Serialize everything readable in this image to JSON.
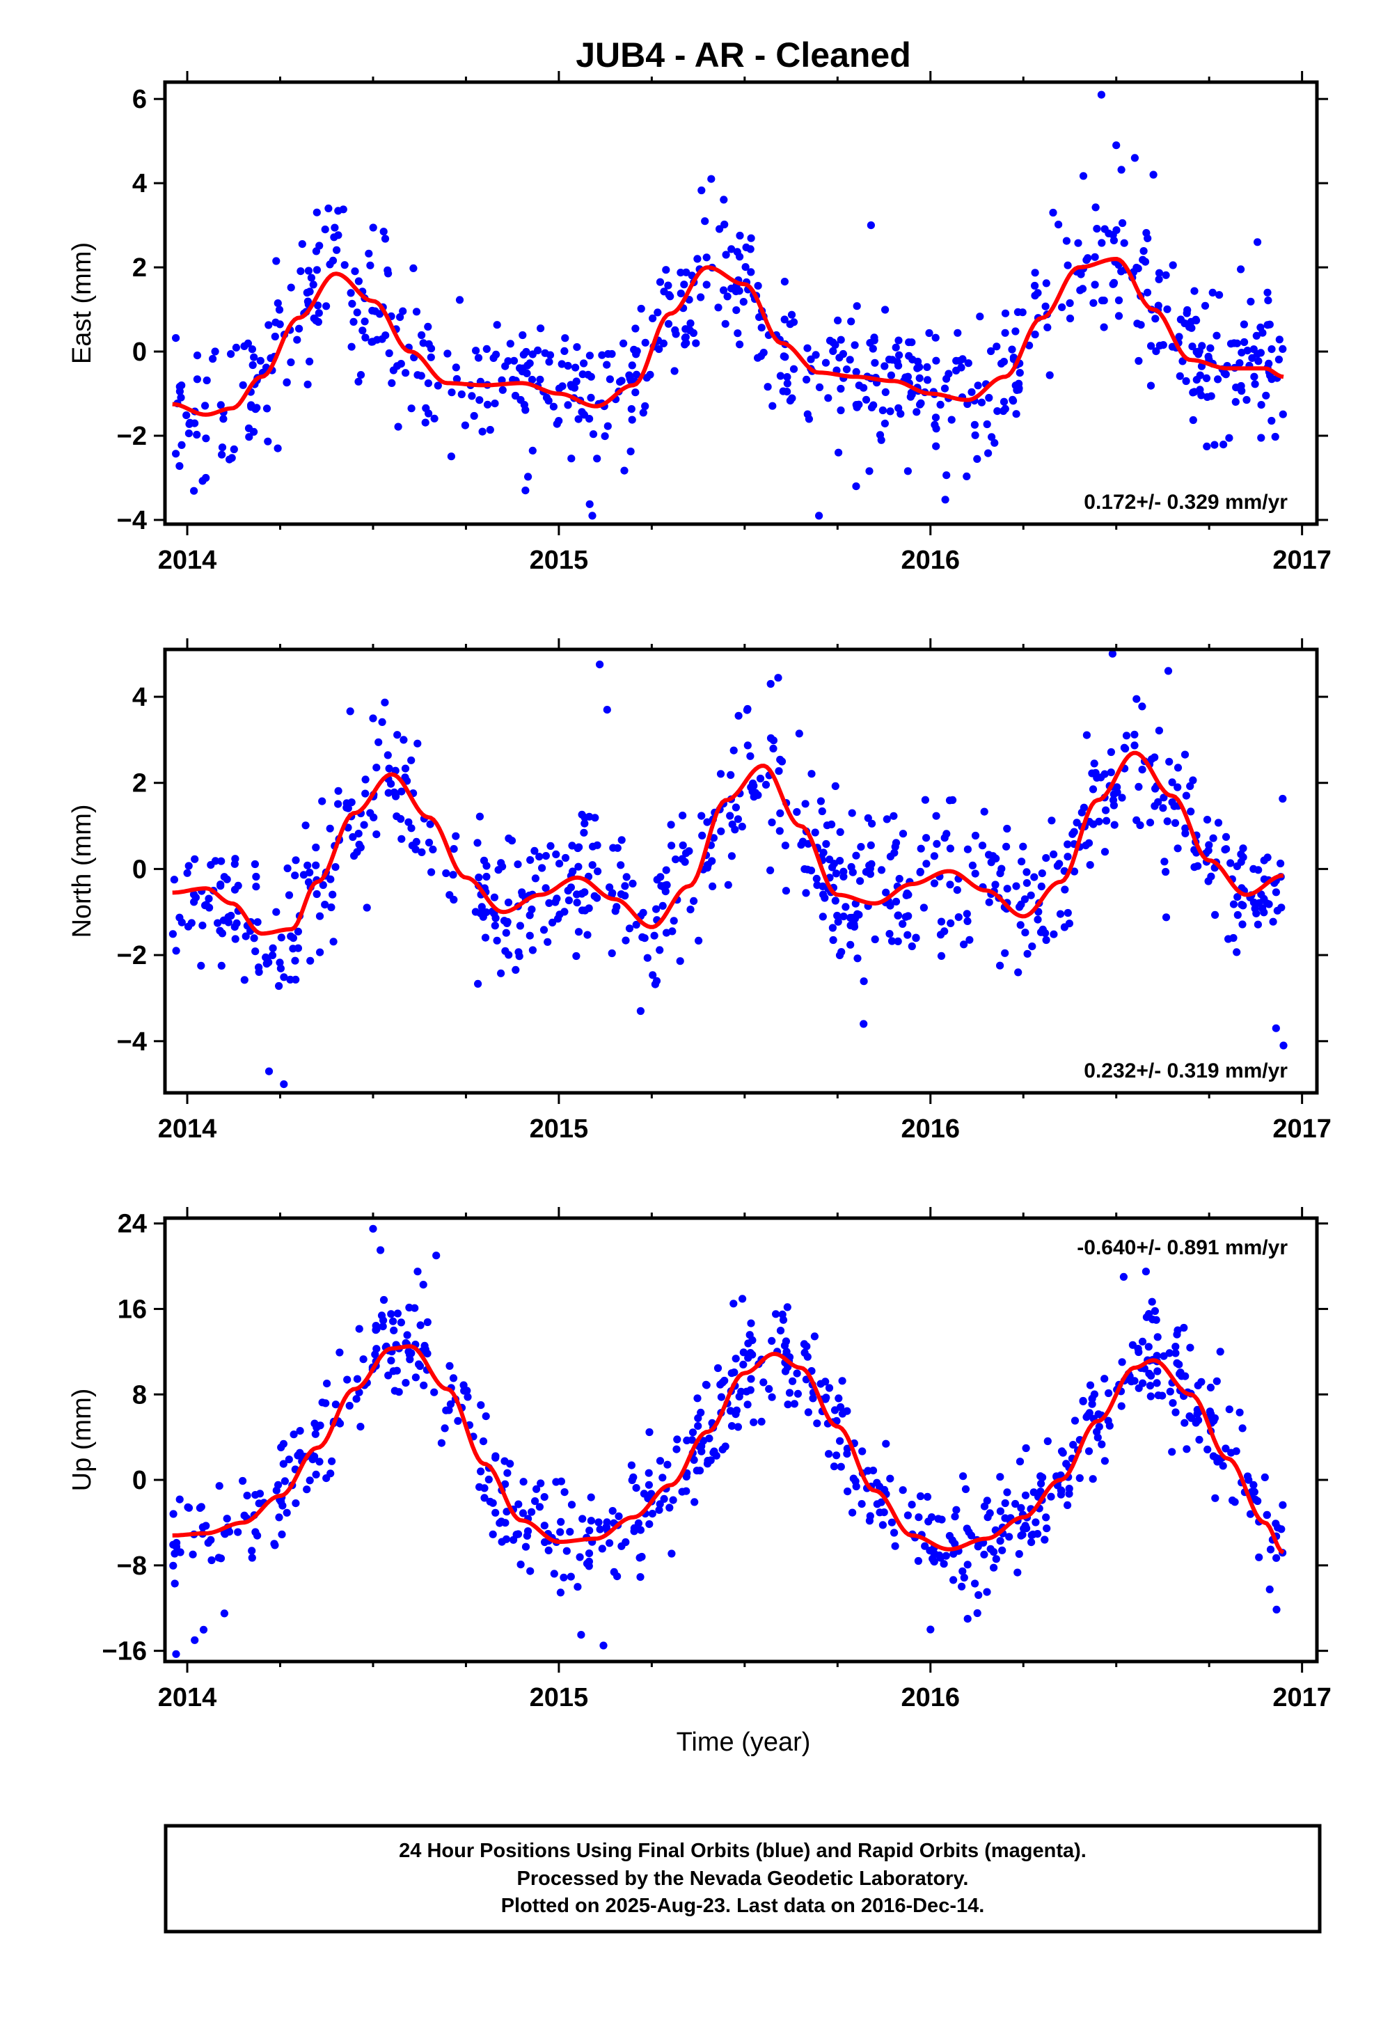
{
  "title": "JUB4  - AR - Cleaned",
  "xlabel": "Time (year)",
  "footer": {
    "lines": [
      "24 Hour Positions Using Final Orbits (blue) and Rapid Orbits (magenta).",
      "Processed by the Nevada Geodetic Laboratory.",
      "Plotted on 2025-Aug-23. Last data on 2016-Dec-14."
    ]
  },
  "colors": {
    "points": "#0000ff",
    "fit": "#ff0000",
    "axes": "#000000"
  },
  "chart_data": [
    {
      "type": "scatter",
      "panel": "east",
      "ylabel": "East (mm)",
      "xlim": [
        2013.94,
        2017.04
      ],
      "ylim": [
        -4.1,
        6.4
      ],
      "xticks": [
        2014,
        2015,
        2016,
        2017
      ],
      "yticks": [
        -4,
        -2,
        0,
        2,
        4,
        6
      ],
      "ytick_labels": [
        "−4",
        "−2",
        "0",
        "2",
        "4",
        "6"
      ],
      "x_range": [
        2013.96,
        2016.95
      ],
      "rate_label": "0.172+/- 0.329 mm/yr",
      "rate_position": "bottom-right",
      "series": [
        {
          "kind": "fit",
          "x": [
            2013.96,
            2014.05,
            2014.12,
            2014.2,
            2014.3,
            2014.4,
            2014.5,
            2014.6,
            2014.7,
            2014.8,
            2014.9,
            2015.0,
            2015.1,
            2015.2,
            2015.3,
            2015.4,
            2015.5,
            2015.6,
            2015.7,
            2015.8,
            2015.9,
            2016.0,
            2016.1,
            2016.2,
            2016.3,
            2016.4,
            2016.5,
            2016.6,
            2016.7,
            2016.8,
            2016.9,
            2016.95
          ],
          "y": [
            -1.25,
            -1.5,
            -1.35,
            -0.6,
            0.8,
            1.85,
            1.2,
            0.0,
            -0.75,
            -0.8,
            -0.75,
            -1.0,
            -1.3,
            -0.8,
            0.9,
            2.0,
            1.6,
            0.2,
            -0.5,
            -0.6,
            -0.7,
            -1.0,
            -1.15,
            -0.6,
            0.8,
            2.0,
            2.2,
            1.0,
            -0.2,
            -0.4,
            -0.4,
            -0.6
          ]
        },
        {
          "kind": "points",
          "sigma": 0.85,
          "outliers": [
            [
              2014.38,
              3.4
            ],
            [
              2015.41,
              4.1
            ],
            [
              2016.46,
              6.1
            ],
            [
              2016.5,
              4.9
            ],
            [
              2016.55,
              4.6
            ],
            [
              2016.6,
              4.2
            ],
            [
              2015.09,
              -3.9
            ],
            [
              2015.7,
              -3.9
            ],
            [
              2015.8,
              -3.2
            ],
            [
              2014.91,
              -3.3
            ],
            [
              2014.05,
              -3.0
            ],
            [
              2015.84,
              3.0
            ],
            [
              2016.33,
              3.3
            ],
            [
              2016.88,
              2.6
            ]
          ]
        }
      ]
    },
    {
      "type": "scatter",
      "panel": "north",
      "ylabel": "North (mm)",
      "xlim": [
        2013.94,
        2017.04
      ],
      "ylim": [
        -5.2,
        5.1
      ],
      "xticks": [
        2014,
        2015,
        2016,
        2017
      ],
      "yticks": [
        -4,
        -2,
        0,
        2,
        4
      ],
      "ytick_labels": [
        "−4",
        "−2",
        "0",
        "2",
        "4"
      ],
      "x_range": [
        2013.96,
        2016.95
      ],
      "rate_label": "0.232+/- 0.319 mm/yr",
      "rate_position": "bottom-right",
      "series": [
        {
          "kind": "fit",
          "x": [
            2013.96,
            2014.05,
            2014.12,
            2014.2,
            2014.28,
            2014.35,
            2014.45,
            2014.55,
            2014.65,
            2014.75,
            2014.85,
            2014.95,
            2015.05,
            2015.15,
            2015.25,
            2015.35,
            2015.45,
            2015.55,
            2015.65,
            2015.75,
            2015.85,
            2015.95,
            2016.05,
            2016.15,
            2016.25,
            2016.35,
            2016.45,
            2016.55,
            2016.65,
            2016.75,
            2016.85,
            2016.95
          ],
          "y": [
            -0.55,
            -0.45,
            -0.8,
            -1.5,
            -1.4,
            -0.3,
            1.3,
            2.2,
            1.2,
            -0.2,
            -1.0,
            -0.6,
            -0.2,
            -0.7,
            -1.35,
            -0.4,
            1.6,
            2.4,
            1.0,
            -0.6,
            -0.8,
            -0.35,
            -0.05,
            -0.5,
            -1.1,
            -0.3,
            1.6,
            2.7,
            1.7,
            0.2,
            -0.6,
            -0.15
          ]
        },
        {
          "kind": "points",
          "sigma": 0.8,
          "outliers": [
            [
              2014.22,
              -4.7
            ],
            [
              2014.26,
              -5.0
            ],
            [
              2015.11,
              4.75
            ],
            [
              2015.13,
              3.7
            ],
            [
              2014.5,
              3.5
            ],
            [
              2016.49,
              5.0
            ],
            [
              2015.82,
              -3.6
            ],
            [
              2016.95,
              -4.1
            ],
            [
              2016.93,
              -3.7
            ],
            [
              2015.57,
              4.3
            ],
            [
              2016.64,
              4.6
            ],
            [
              2015.22,
              -3.3
            ]
          ]
        }
      ]
    },
    {
      "type": "scatter",
      "panel": "up",
      "ylabel": "Up (mm)",
      "xlim": [
        2013.94,
        2017.04
      ],
      "ylim": [
        -17,
        24.5
      ],
      "xticks": [
        2014,
        2015,
        2016,
        2017
      ],
      "yticks": [
        -16,
        -8,
        0,
        8,
        16,
        24
      ],
      "ytick_labels": [
        "−16",
        "−8",
        "0",
        "8",
        "16",
        "24"
      ],
      "x_range": [
        2013.96,
        2016.95
      ],
      "rate_label": "-0.640+/- 0.891 mm/yr",
      "rate_position": "top-right",
      "series": [
        {
          "kind": "fit",
          "x": [
            2013.96,
            2014.05,
            2014.15,
            2014.25,
            2014.35,
            2014.45,
            2014.55,
            2014.6,
            2014.7,
            2014.8,
            2014.9,
            2015.0,
            2015.1,
            2015.2,
            2015.3,
            2015.4,
            2015.5,
            2015.58,
            2015.65,
            2015.75,
            2015.85,
            2015.95,
            2016.05,
            2016.15,
            2016.25,
            2016.35,
            2016.45,
            2016.55,
            2016.6,
            2016.7,
            2016.8,
            2016.9,
            2016.95
          ],
          "y": [
            -5.2,
            -5.0,
            -4.0,
            -1.5,
            3.0,
            8.5,
            12.3,
            12.5,
            8.5,
            1.5,
            -3.8,
            -5.8,
            -5.5,
            -3.5,
            -0.5,
            4.5,
            10.0,
            11.8,
            10.5,
            5.0,
            -1.0,
            -5.2,
            -6.5,
            -5.5,
            -3.5,
            0.0,
            5.5,
            10.5,
            11.2,
            8.0,
            2.0,
            -4.0,
            -6.8
          ]
        },
        {
          "kind": "points",
          "sigma": 2.6,
          "outliers": [
            [
              2014.5,
              23.5
            ],
            [
              2014.52,
              21.5
            ],
            [
              2014.67,
              21.0
            ],
            [
              2014.62,
              19.5
            ],
            [
              2013.97,
              -16.3
            ],
            [
              2014.02,
              -15.0
            ],
            [
              2014.1,
              -12.5
            ],
            [
              2015.12,
              -15.5
            ],
            [
              2015.06,
              -14.5
            ],
            [
              2016.58,
              19.5
            ],
            [
              2016.52,
              19.0
            ],
            [
              2015.47,
              16.5
            ],
            [
              2016.1,
              -13.0
            ],
            [
              2016.0,
              -14.0
            ],
            [
              2016.78,
              12.0
            ],
            [
              2014.79,
              7.0
            ]
          ]
        }
      ]
    }
  ]
}
